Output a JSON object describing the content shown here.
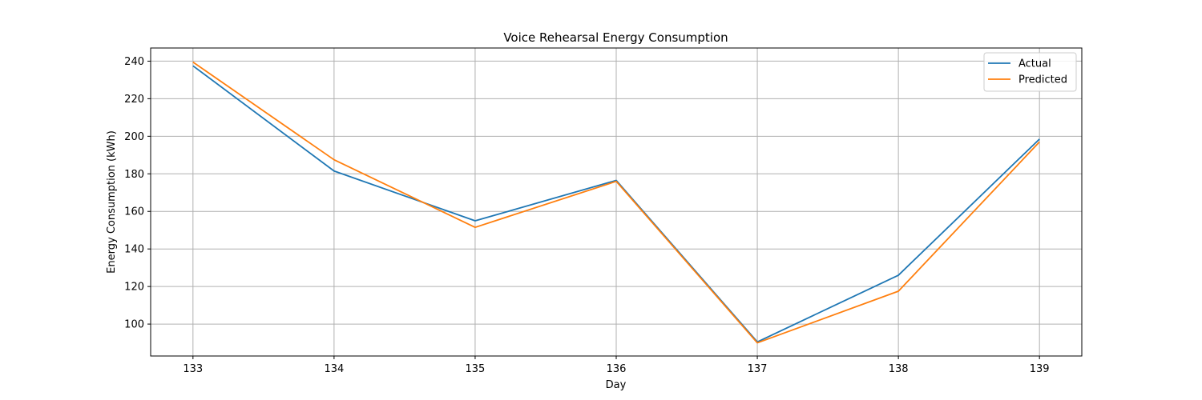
{
  "chart_data": {
    "type": "line",
    "title": "Voice Rehearsal Energy Consumption",
    "xlabel": "Day",
    "ylabel": "Energy Consumption (kWh)",
    "x": [
      133,
      134,
      135,
      136,
      137,
      138,
      139
    ],
    "xticks": [
      "133",
      "134",
      "135",
      "136",
      "137",
      "138",
      "139"
    ],
    "yticks": [
      100,
      120,
      140,
      160,
      180,
      200,
      220,
      240
    ],
    "xlim": [
      132.7,
      139.3
    ],
    "ylim": [
      83,
      247
    ],
    "grid": true,
    "legend_position": "top-right",
    "series": [
      {
        "name": "Actual",
        "color": "#1f77b4",
        "values": [
          237.5,
          181.5,
          155.0,
          176.5,
          90.5,
          126.0,
          198.5
        ]
      },
      {
        "name": "Predicted",
        "color": "#ff7f0e",
        "values": [
          239.5,
          187.5,
          151.5,
          176.0,
          90.0,
          117.5,
          197.0
        ]
      }
    ]
  }
}
